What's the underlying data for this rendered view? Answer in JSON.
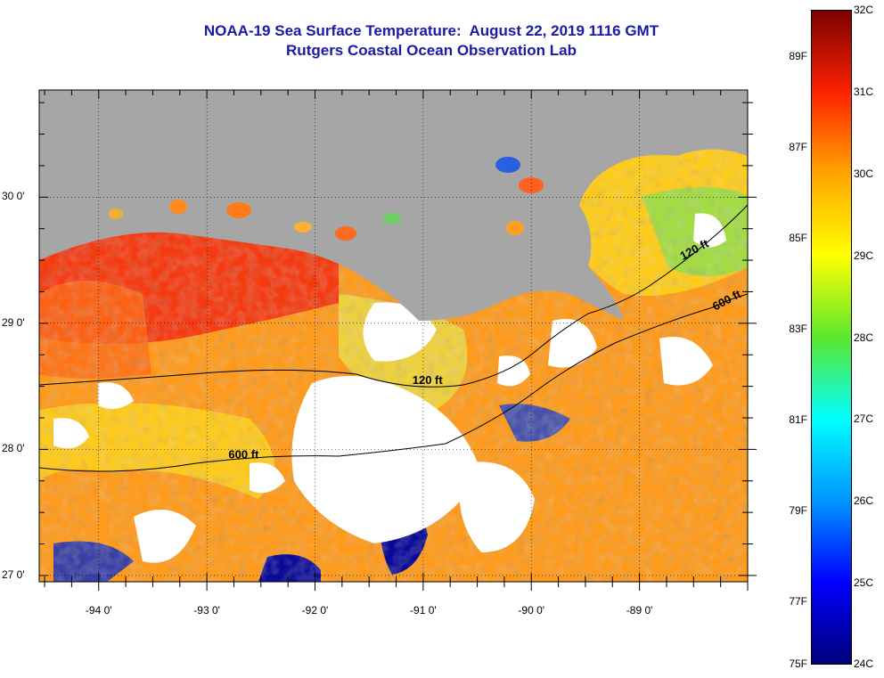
{
  "title": {
    "line1": "NOAA-19 Sea Surface Temperature:  August 22, 2019 1116 GMT",
    "line2": "Rutgers Coastal Ocean Observation Lab"
  },
  "map": {
    "lat_labels": [
      "30 0'",
      "29 0'",
      "28 0'",
      "27 0'"
    ],
    "lat_values": [
      30,
      29,
      28,
      27
    ],
    "lon_labels": [
      "-94 0'",
      "-93 0'",
      "-92 0'",
      "-91 0'",
      "-90 0'",
      "-89 0'"
    ],
    "lon_values": [
      -94,
      -93,
      -92,
      -91,
      -90,
      -89
    ],
    "extent": {
      "lon_min": -94.55,
      "lon_max": -88.0,
      "lat_min": 26.95,
      "lat_max": 30.85
    },
    "contour_labels": [
      {
        "text": "120 ft",
        "lon": -91.1,
        "lat": 28.52
      },
      {
        "text": "600 ft",
        "lon": -92.8,
        "lat": 27.93
      },
      {
        "text": "120 ft",
        "lon": -88.6,
        "lat": 29.5
      },
      {
        "text": "600 ft",
        "lon": -88.3,
        "lat": 29.1
      }
    ],
    "colors": {
      "land": "#a6a6a6",
      "no_data": "#ffffff",
      "contour": "#000000"
    }
  },
  "colorbar": {
    "fahrenheit": [
      "89F",
      "87F",
      "85F",
      "83F",
      "81F",
      "79F",
      "77F",
      "75F"
    ],
    "fahrenheit_values": [
      89,
      87,
      85,
      83,
      81,
      79,
      77,
      75
    ],
    "celsius": [
      "32C",
      "31C",
      "30C",
      "29C",
      "28C",
      "27C",
      "26C",
      "25C",
      "24C"
    ],
    "celsius_values": [
      32,
      31,
      30,
      29,
      28,
      27,
      26,
      25,
      24
    ],
    "range_c": [
      24,
      32
    ],
    "stops": [
      "#00007a",
      "#0000ff",
      "#0096ff",
      "#00ffff",
      "#5ce62e",
      "#ffff00",
      "#ffa500",
      "#ff2200",
      "#7a0000"
    ]
  }
}
